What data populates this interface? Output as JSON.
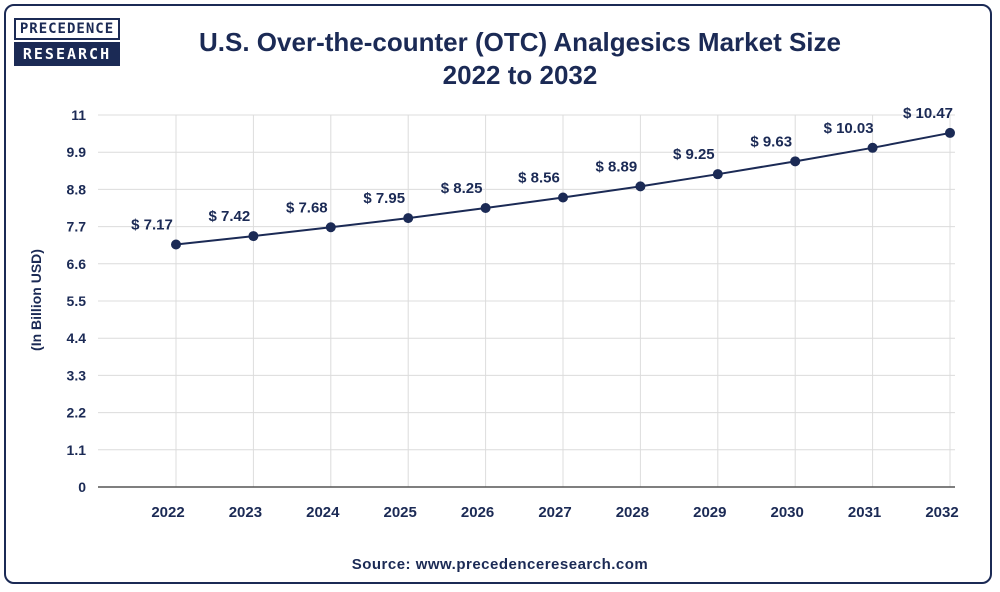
{
  "brand": {
    "logo_top": "PRECEDENCE",
    "logo_bottom": "RESEARCH"
  },
  "colors": {
    "primary": "#1b2a55",
    "line": "#1b2a55",
    "grid": "#dcdcdc"
  },
  "chart_data": {
    "type": "line",
    "title": "U.S. Over-the-counter (OTC) Analgesics Market Size",
    "subtitle": "2022 to 2032",
    "xlabel": "",
    "ylabel": "(In Billion USD)",
    "categories": [
      "2022",
      "2023",
      "2024",
      "2025",
      "2026",
      "2027",
      "2028",
      "2029",
      "2030",
      "2031",
      "2032"
    ],
    "series": [
      {
        "name": "Market Size",
        "values": [
          7.17,
          7.42,
          7.68,
          7.95,
          8.25,
          8.56,
          8.89,
          9.25,
          9.63,
          10.03,
          10.47
        ],
        "labels": [
          "$ 7.17",
          "$ 7.42",
          "$ 7.68",
          "$ 7.95",
          "$ 8.25",
          "$ 8.56",
          "$ 8.89",
          "$ 9.25",
          "$ 9.63",
          "$ 10.03",
          "$ 10.47"
        ]
      }
    ],
    "yticks": [
      "0",
      "1.1",
      "2.2",
      "3.3",
      "4.4",
      "5.5",
      "6.6",
      "7.7",
      "8.8",
      "9.9",
      "11"
    ],
    "ylim": [
      0,
      11
    ],
    "grid": true,
    "legend": "none"
  },
  "source": "Source: www.precedenceresearch.com"
}
